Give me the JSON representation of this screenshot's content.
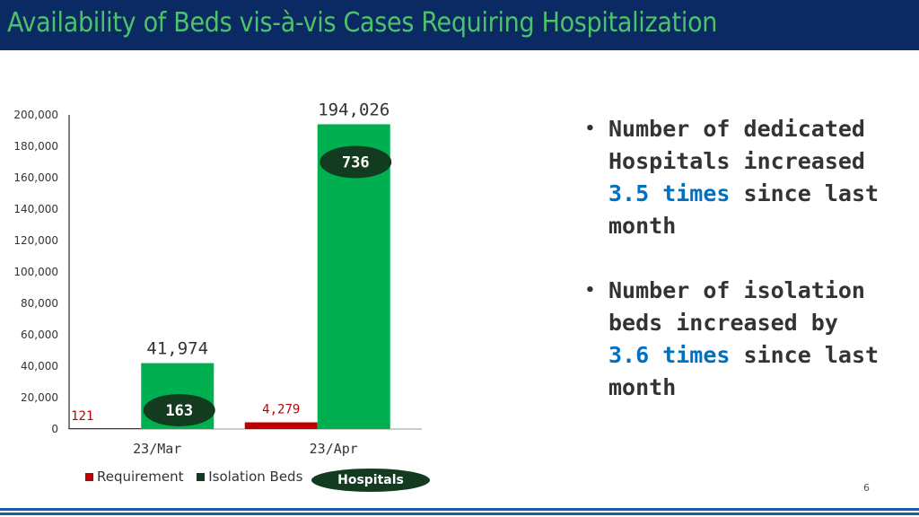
{
  "header": {
    "title": "Availability of Beds vis-à-vis Cases Requiring Hospitalization"
  },
  "colors": {
    "header_bg": "#0b2a63",
    "title": "#4cc36a",
    "requirement": "#c00000",
    "isolation_beds": "#00b050",
    "hospital_badge": "#123b1f",
    "highlight": "#0070c0"
  },
  "chart_data": {
    "type": "bar",
    "categories": [
      "23/Mar",
      "23/Apr"
    ],
    "series": [
      {
        "name": "Requirement",
        "values": [
          121,
          4279
        ],
        "labels": [
          "121",
          "4,279"
        ]
      },
      {
        "name": "Isolation Beds",
        "values": [
          41974,
          194026
        ],
        "labels": [
          "41,974",
          "194,026"
        ]
      }
    ],
    "hospitals": {
      "name": "Hospitals",
      "values": [
        163,
        736
      ]
    },
    "ylim": [
      0,
      200000
    ],
    "yticks": [
      "0",
      "20,000",
      "40,000",
      "60,000",
      "80,000",
      "100,000",
      "120,000",
      "140,000",
      "160,000",
      "180,000",
      "200,000"
    ],
    "legend": "bottom",
    "grid": false
  },
  "legend": {
    "requirement": "Requirement",
    "isolation_beds": "Isolation Beds",
    "hospitals": "Hospitals"
  },
  "bullets": [
    {
      "before": "Number of dedicated Hospitals increased",
      "highlight": "3.5 times",
      "after": "since last month"
    },
    {
      "before": "Number of isolation beds increased by",
      "highlight": "3.6 times",
      "after": "since last month"
    }
  ],
  "page_number": "6"
}
